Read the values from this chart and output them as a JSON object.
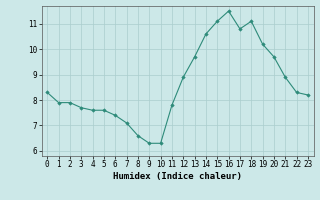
{
  "x": [
    0,
    1,
    2,
    3,
    4,
    5,
    6,
    7,
    8,
    9,
    10,
    11,
    12,
    13,
    14,
    15,
    16,
    17,
    18,
    19,
    20,
    21,
    22,
    23
  ],
  "y": [
    8.3,
    7.9,
    7.9,
    7.7,
    7.6,
    7.6,
    7.4,
    7.1,
    6.6,
    6.3,
    6.3,
    7.8,
    8.9,
    9.7,
    10.6,
    11.1,
    11.5,
    10.8,
    11.1,
    10.2,
    9.7,
    8.9,
    8.3,
    8.2
  ],
  "line_color": "#2e8b7a",
  "marker": "D",
  "marker_size": 1.8,
  "bg_color": "#cce8e8",
  "grid_color": "#aacece",
  "xlabel": "Humidex (Indice chaleur)",
  "xlim": [
    -0.5,
    23.5
  ],
  "ylim": [
    5.8,
    11.7
  ],
  "yticks": [
    6,
    7,
    8,
    9,
    10,
    11
  ],
  "xticks": [
    0,
    1,
    2,
    3,
    4,
    5,
    6,
    7,
    8,
    9,
    10,
    11,
    12,
    13,
    14,
    15,
    16,
    17,
    18,
    19,
    20,
    21,
    22,
    23
  ],
  "xlabel_fontsize": 6.5,
  "tick_fontsize": 5.5,
  "line_width": 0.8,
  "spine_color": "#555555"
}
